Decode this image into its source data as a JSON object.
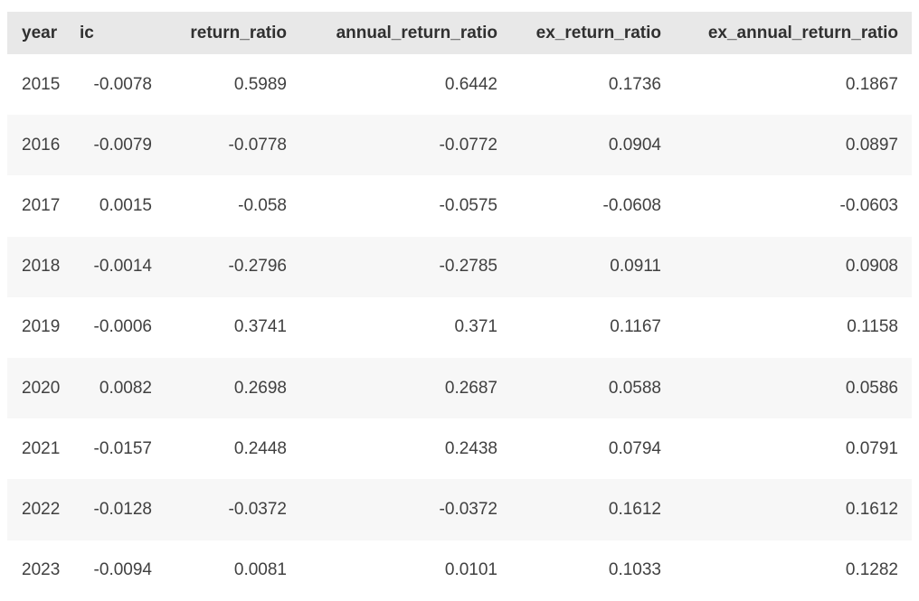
{
  "chart_data": {
    "type": "table",
    "title": "",
    "columns": [
      "year",
      "ic",
      "return_ratio",
      "annual_return_ratio",
      "ex_return_ratio",
      "ex_annual_return_ratio"
    ],
    "rows": [
      [
        2015,
        -0.0078,
        0.5989,
        0.6442,
        0.1736,
        0.1867
      ],
      [
        2016,
        -0.0079,
        -0.0778,
        -0.0772,
        0.0904,
        0.0897
      ],
      [
        2017,
        0.0015,
        -0.058,
        -0.0575,
        -0.0608,
        -0.0603
      ],
      [
        2018,
        -0.0014,
        -0.2796,
        -0.2785,
        0.0911,
        0.0908
      ],
      [
        2019,
        -0.0006,
        0.3741,
        0.371,
        0.1167,
        0.1158
      ],
      [
        2020,
        0.0082,
        0.2698,
        0.2687,
        0.0588,
        0.0586
      ],
      [
        2021,
        -0.0157,
        0.2448,
        0.2438,
        0.0794,
        0.0791
      ],
      [
        2022,
        -0.0128,
        -0.0372,
        -0.0372,
        0.1612,
        0.1612
      ],
      [
        2023,
        -0.0094,
        0.0081,
        0.0101,
        0.1033,
        0.1282
      ]
    ],
    "layout_hints": {
      "zebra_striping": true,
      "striped_rows": [
        2016,
        2018,
        2020,
        2022
      ],
      "numeric_columns_right_aligned": true
    }
  },
  "table": {
    "columns": [
      {
        "key": "year",
        "label": "year",
        "align": "left",
        "header_align": "left"
      },
      {
        "key": "ic",
        "label": "ic",
        "align": "right",
        "header_align": "left"
      },
      {
        "key": "return_ratio",
        "label": "return_ratio",
        "align": "right",
        "header_align": "right"
      },
      {
        "key": "annual_return_ratio",
        "label": "annual_return_ratio",
        "align": "right",
        "header_align": "right"
      },
      {
        "key": "ex_return_ratio",
        "label": "ex_return_ratio",
        "align": "right",
        "header_align": "right"
      },
      {
        "key": "ex_annual_return_ratio",
        "label": "ex_annual_return_ratio",
        "align": "right",
        "header_align": "right"
      }
    ],
    "rows": [
      [
        "2015",
        "-0.0078",
        "0.5989",
        "0.6442",
        "0.1736",
        "0.1867"
      ],
      [
        "2016",
        "-0.0079",
        "-0.0778",
        "-0.0772",
        "0.0904",
        "0.0897"
      ],
      [
        "2017",
        "0.0015",
        "-0.058",
        "-0.0575",
        "-0.0608",
        "-0.0603"
      ],
      [
        "2018",
        "-0.0014",
        "-0.2796",
        "-0.2785",
        "0.0911",
        "0.0908"
      ],
      [
        "2019",
        "-0.0006",
        "0.3741",
        "0.371",
        "0.1167",
        "0.1158"
      ],
      [
        "2020",
        "0.0082",
        "0.2698",
        "0.2687",
        "0.0588",
        "0.0586"
      ],
      [
        "2021",
        "-0.0157",
        "0.2448",
        "0.2438",
        "0.0794",
        "0.0791"
      ],
      [
        "2022",
        "-0.0128",
        "-0.0372",
        "-0.0372",
        "0.1612",
        "0.1612"
      ],
      [
        "2023",
        "-0.0094",
        "0.0081",
        "0.0101",
        "0.1033",
        "0.1282"
      ]
    ],
    "colors": {
      "header_background": "#e8e8e8",
      "row_alt_background": "#f7f7f7",
      "header_text": "#303030",
      "body_text": "#404040"
    }
  }
}
